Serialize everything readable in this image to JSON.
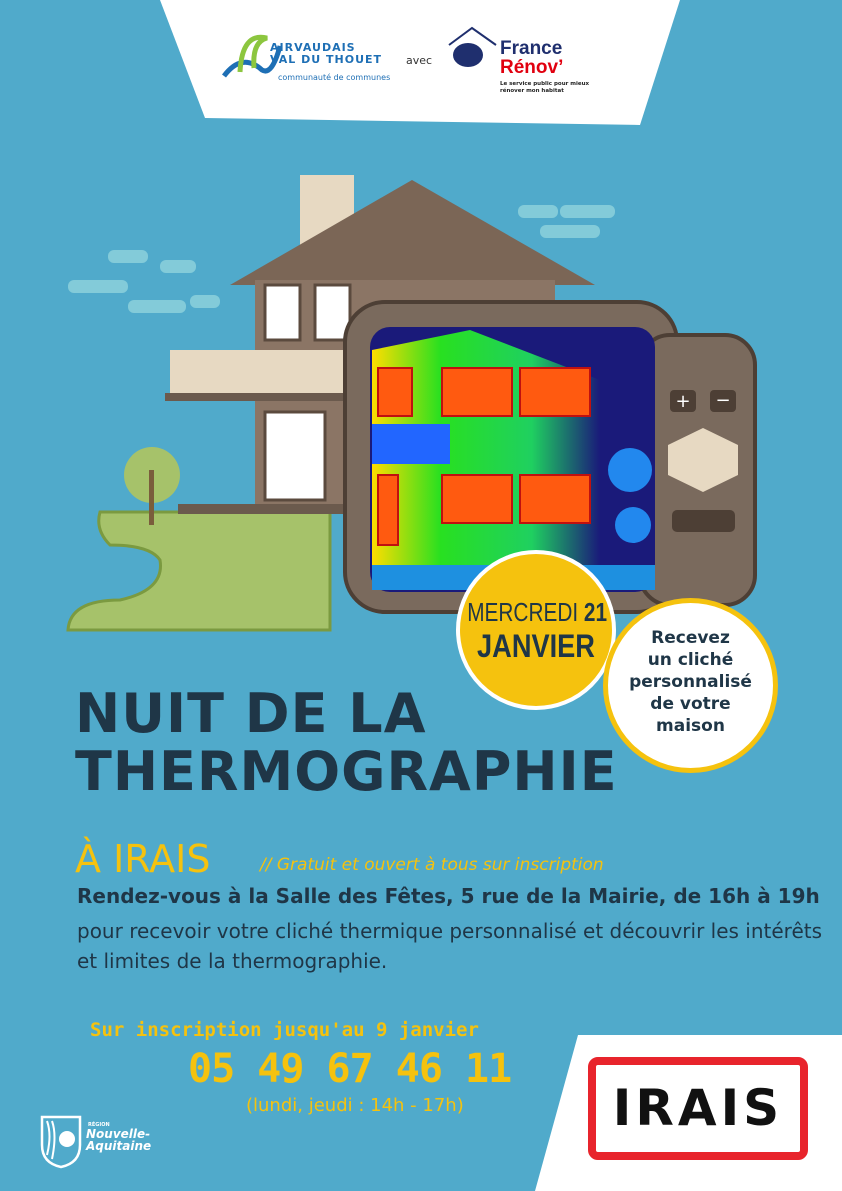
{
  "header": {
    "partner1": {
      "line1": "AIRVAUDAIS",
      "line2": "VAL DU THOUET",
      "line3": "communauté de communes"
    },
    "connector": "avec",
    "partner2": {
      "line1": "France",
      "line2": "Rénov’",
      "tagline": "Le service public pour mieux rénover mon habitat"
    }
  },
  "event": {
    "date_day": "MERCREDI",
    "date_num": "21",
    "date_month": "JANVIER",
    "badge": [
      "Recevez",
      "un cliché",
      "personnalisé",
      "de votre",
      "maison"
    ],
    "title_line1": "NUIT DE LA",
    "title_line2": "THERMOGRAPHIE",
    "place": "À IRAIS",
    "free_note": "// Gratuit et ouvert à tous sur inscription",
    "rdv": "Rendez-vous à la Salle des Fêtes, 5 rue de la Mairie, de 16h à 19h",
    "description": "pour recevoir votre cliché thermique personnalisé et découvrir les intérêts et limites de la thermographie."
  },
  "contact": {
    "registration": "Sur inscription jusqu'au 9 janvier",
    "phone": "05 49 67 46 11",
    "hours": "(lundi, jeudi : 14h - 17h)"
  },
  "footer": {
    "region": {
      "small": "RÉGION",
      "line1": "Nouvelle-",
      "line2": "Aquitaine"
    },
    "town_sign": "IRAIS"
  },
  "colors": {
    "background": "#50aacb",
    "text": "#1f3647",
    "accent": "#f5c20e",
    "sign_border": "#e8242c"
  }
}
